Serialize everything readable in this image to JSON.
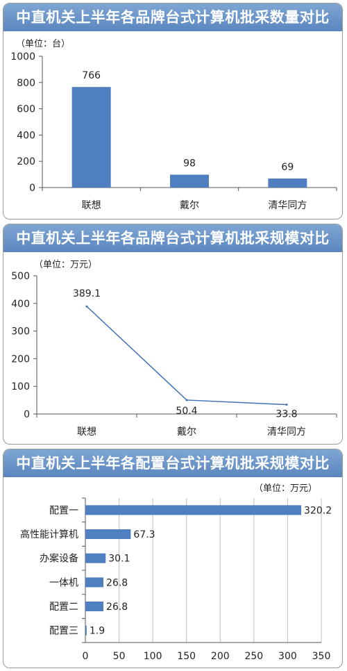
{
  "chart_data": [
    {
      "type": "bar",
      "title": "中直机关上半年各品牌台式计算机批采数量对比",
      "unit_label": "（单位：台）",
      "categories": [
        "联想",
        "戴尔",
        "清华同方"
      ],
      "values": [
        766,
        98,
        69
      ],
      "data_labels": [
        "766",
        "98",
        "69"
      ],
      "ylim": [
        0,
        1000
      ],
      "yticks": [
        0,
        200,
        400,
        600,
        800,
        1000
      ],
      "grid": false,
      "colors": {
        "bar": "#4f7fc0",
        "axis": "#555555"
      }
    },
    {
      "type": "line",
      "title": "中直机关上半年各品牌台式计算机批采规模对比",
      "unit_label": "（单位：万元）",
      "categories": [
        "联想",
        "戴尔",
        "清华同方"
      ],
      "values": [
        389.1,
        50.4,
        33.8
      ],
      "data_labels": [
        "389.1",
        "50.4",
        "33.8"
      ],
      "ylim": [
        0,
        500
      ],
      "yticks": [
        0,
        100,
        200,
        300,
        400,
        500
      ],
      "grid": false,
      "colors": {
        "line": "#3f70b8",
        "axis": "#555555"
      }
    },
    {
      "type": "bar",
      "orientation": "horizontal",
      "title": "中直机关上半年各配置台式计算机批采规模对比",
      "unit_label": "（单位：万元）",
      "categories": [
        "配置一",
        "高性能计算机",
        "办案设备",
        "一体机",
        "配置二",
        "配置三"
      ],
      "values": [
        320.2,
        67.3,
        30.1,
        26.8,
        26.8,
        1.9
      ],
      "data_labels": [
        "320.2",
        "67.3",
        "30.1",
        "26.8",
        "26.8",
        "1.9"
      ],
      "xlim": [
        0,
        350
      ],
      "xticks": [
        0,
        50,
        100,
        150,
        200,
        250,
        300,
        350
      ],
      "grid": true,
      "colors": {
        "bar": "#4f7fc0",
        "axis": "#555555",
        "grid": "#bfbfbf"
      }
    }
  ]
}
